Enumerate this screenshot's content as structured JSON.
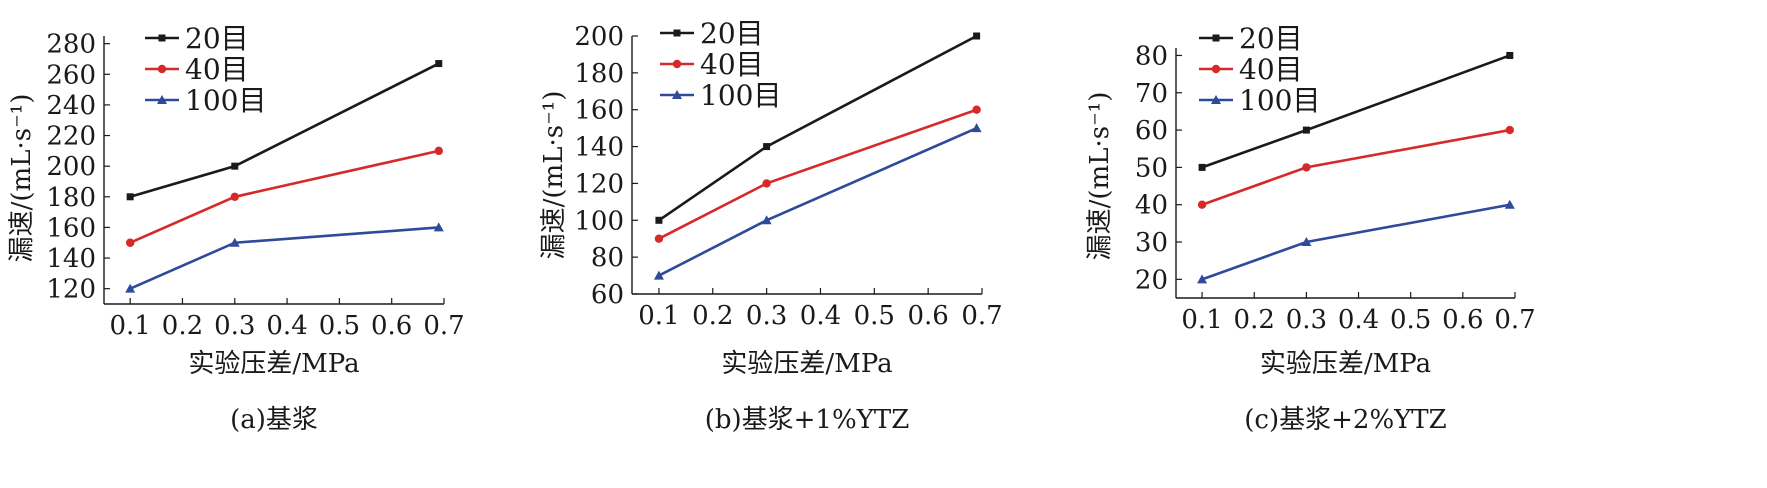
{
  "chart_data": [
    {
      "type": "line",
      "caption": "(a)基浆",
      "xlabel": "实验压差/MPa",
      "ylabel": "漏速/(mL·s⁻¹)",
      "x_ticks": [
        "0.1",
        "0.2",
        "0.3",
        "0.4",
        "0.5",
        "0.6",
        "0.7"
      ],
      "y_ticks": [
        120,
        140,
        160,
        180,
        200,
        220,
        240,
        260,
        280
      ],
      "xlim": [
        0.05,
        0.7
      ],
      "ylim": [
        110,
        285
      ],
      "legend_position": "top-left",
      "series": [
        {
          "name": "20目",
          "color": "#1a1a1a",
          "marker": "square",
          "x": [
            0.1,
            0.3,
            0.69
          ],
          "y": [
            180,
            200,
            267
          ]
        },
        {
          "name": "40目",
          "color": "#d62a2a",
          "marker": "circle",
          "x": [
            0.1,
            0.3,
            0.69
          ],
          "y": [
            150,
            180,
            210
          ]
        },
        {
          "name": "100目",
          "color": "#2f4a9a",
          "marker": "triangle",
          "x": [
            0.1,
            0.3,
            0.69
          ],
          "y": [
            120,
            150,
            160
          ]
        }
      ]
    },
    {
      "type": "line",
      "caption": "(b)基浆+1%YTZ",
      "xlabel": "实验压差/MPa",
      "ylabel": "漏速/(mL·s⁻¹)",
      "x_ticks": [
        "0.1",
        "0.2",
        "0.3",
        "0.4",
        "0.5",
        "0.6",
        "0.7"
      ],
      "y_ticks": [
        60,
        80,
        100,
        120,
        140,
        160,
        180,
        200
      ],
      "xlim": [
        0.05,
        0.7
      ],
      "ylim": [
        60,
        200
      ],
      "legend_position": "top-left",
      "series": [
        {
          "name": "20目",
          "color": "#1a1a1a",
          "marker": "square",
          "x": [
            0.1,
            0.3,
            0.69
          ],
          "y": [
            100,
            140,
            200
          ]
        },
        {
          "name": "40目",
          "color": "#d62a2a",
          "marker": "circle",
          "x": [
            0.1,
            0.3,
            0.69
          ],
          "y": [
            90,
            120,
            160
          ]
        },
        {
          "name": "100目",
          "color": "#2f4a9a",
          "marker": "triangle",
          "x": [
            0.1,
            0.3,
            0.69
          ],
          "y": [
            70,
            100,
            150
          ]
        }
      ]
    },
    {
      "type": "line",
      "caption": "(c)基浆+2%YTZ",
      "xlabel": "实验压差/MPa",
      "ylabel": "漏速/(mL·s⁻¹)",
      "x_ticks": [
        "0.1",
        "0.2",
        "0.3",
        "0.4",
        "0.5",
        "0.6",
        "0.7"
      ],
      "y_ticks": [
        20,
        30,
        40,
        50,
        60,
        70,
        80
      ],
      "xlim": [
        0.05,
        0.7
      ],
      "ylim": [
        15,
        82
      ],
      "legend_position": "top-left",
      "series": [
        {
          "name": "20目",
          "color": "#1a1a1a",
          "marker": "square",
          "x": [
            0.1,
            0.3,
            0.69
          ],
          "y": [
            50,
            60,
            80
          ]
        },
        {
          "name": "40目",
          "color": "#d62a2a",
          "marker": "circle",
          "x": [
            0.1,
            0.3,
            0.69
          ],
          "y": [
            40,
            50,
            60
          ]
        },
        {
          "name": "100目",
          "color": "#2f4a9a",
          "marker": "triangle",
          "x": [
            0.1,
            0.3,
            0.69
          ],
          "y": [
            20,
            30,
            40
          ]
        }
      ]
    }
  ]
}
